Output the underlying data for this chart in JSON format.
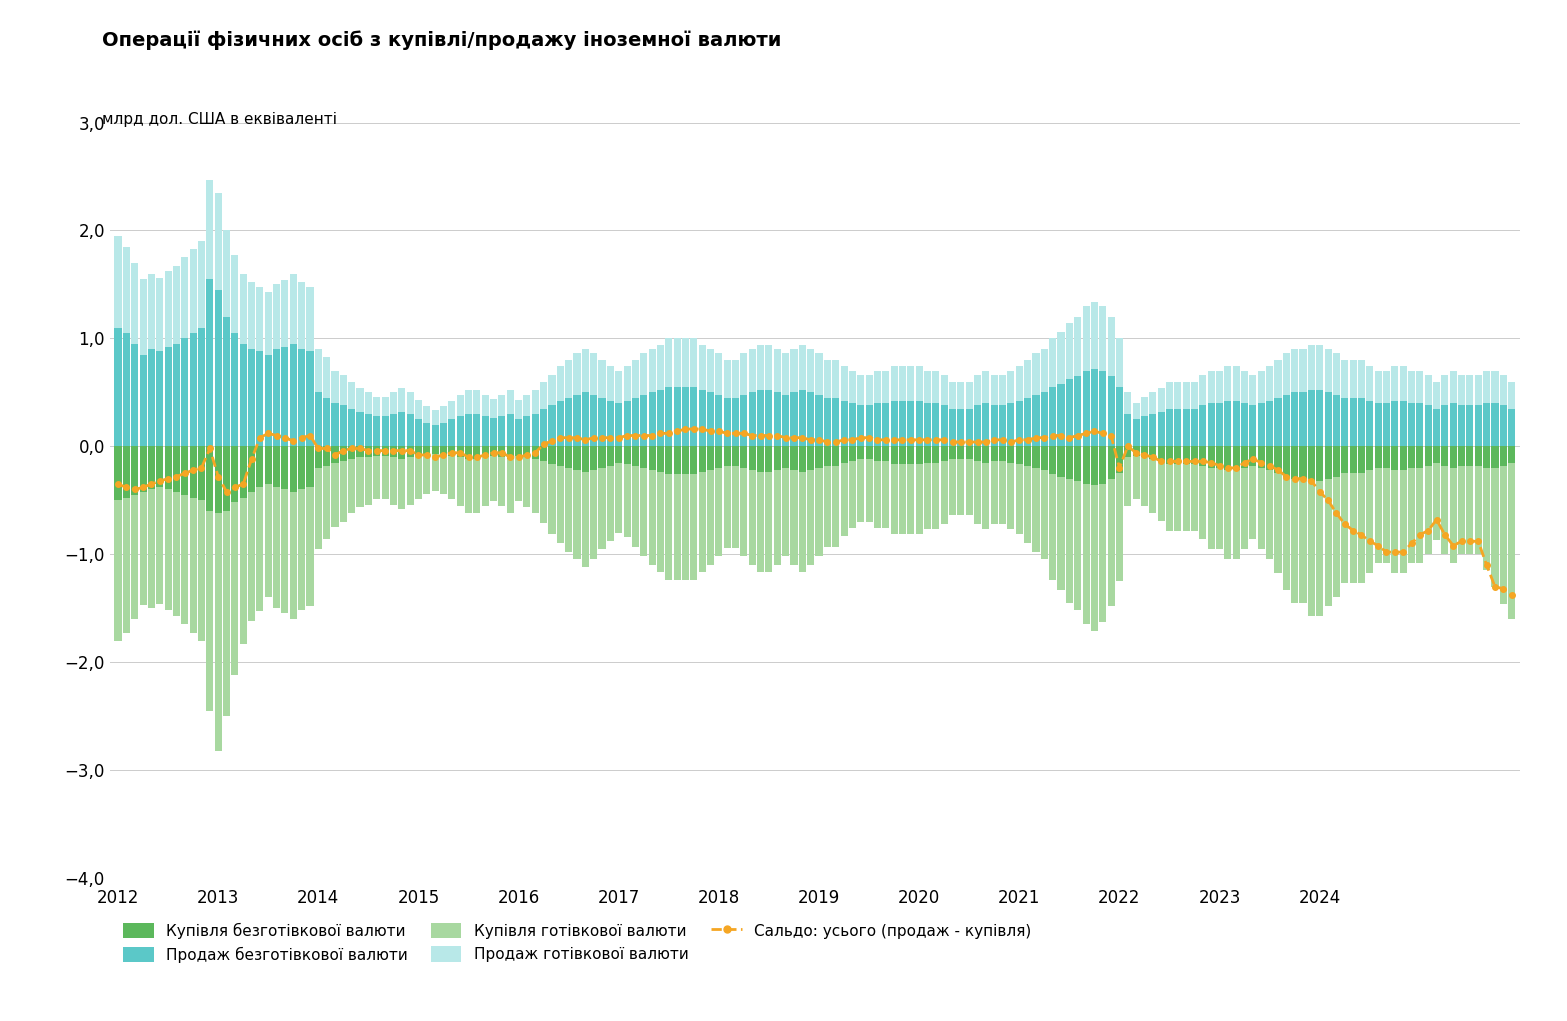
{
  "title": "Операції фізичних осіб з купівлі/продажу іноземної валюти",
  "ylabel": "млрд дол. США в еквіваленті",
  "ylim": [
    -4.0,
    3.0
  ],
  "yticks": [
    -4.0,
    -3.0,
    -2.0,
    -1.0,
    0.0,
    1.0,
    2.0,
    3.0
  ],
  "colors": {
    "buy_cashless": "#5cb85c",
    "sell_cashless": "#5bc8c8",
    "buy_cash": "#a8d8a0",
    "sell_cash": "#b8e8e8",
    "saldo_line": "#f5a623",
    "grid": "#cccccc",
    "background": "#ffffff"
  },
  "legend": [
    "Купівля безготівкової валюти",
    "Продаж безготівкової валюти",
    "Купівля готівкової валюти",
    "Продаж готівкової валюти",
    "Сальдо: усього (продаж - купівля)"
  ],
  "xtick_years": [
    "2012",
    "2013",
    "2014",
    "2015",
    "2016",
    "2017",
    "2018",
    "2019",
    "2020",
    "2021",
    "2022",
    "2023",
    "2024"
  ],
  "sell_cashless": [
    1.1,
    1.05,
    0.95,
    0.85,
    0.9,
    0.88,
    0.92,
    0.95,
    1.0,
    1.05,
    1.1,
    1.55,
    1.45,
    1.2,
    1.05,
    0.95,
    0.9,
    0.88,
    0.85,
    0.9,
    0.92,
    0.95,
    0.9,
    0.88,
    0.5,
    0.45,
    0.4,
    0.38,
    0.35,
    0.32,
    0.3,
    0.28,
    0.28,
    0.3,
    0.32,
    0.3,
    0.25,
    0.22,
    0.2,
    0.22,
    0.25,
    0.28,
    0.3,
    0.3,
    0.28,
    0.26,
    0.28,
    0.3,
    0.25,
    0.28,
    0.3,
    0.35,
    0.38,
    0.42,
    0.45,
    0.48,
    0.5,
    0.48,
    0.45,
    0.42,
    0.4,
    0.42,
    0.45,
    0.48,
    0.5,
    0.52,
    0.55,
    0.55,
    0.55,
    0.55,
    0.52,
    0.5,
    0.48,
    0.45,
    0.45,
    0.48,
    0.5,
    0.52,
    0.52,
    0.5,
    0.48,
    0.5,
    0.52,
    0.5,
    0.48,
    0.45,
    0.45,
    0.42,
    0.4,
    0.38,
    0.38,
    0.4,
    0.4,
    0.42,
    0.42,
    0.42,
    0.42,
    0.4,
    0.4,
    0.38,
    0.35,
    0.35,
    0.35,
    0.38,
    0.4,
    0.38,
    0.38,
    0.4,
    0.42,
    0.45,
    0.48,
    0.5,
    0.55,
    0.58,
    0.62,
    0.65,
    0.7,
    0.72,
    0.7,
    0.65,
    0.55,
    0.3,
    0.25,
    0.28,
    0.3,
    0.32,
    0.35,
    0.35,
    0.35,
    0.35,
    0.38,
    0.4,
    0.4,
    0.42,
    0.42,
    0.4,
    0.38,
    0.4,
    0.42,
    0.45,
    0.48,
    0.5,
    0.5,
    0.52,
    0.52,
    0.5,
    0.48,
    0.45,
    0.45,
    0.45,
    0.42,
    0.4,
    0.4,
    0.42,
    0.42,
    0.4,
    0.4,
    0.38,
    0.35,
    0.38,
    0.4,
    0.38,
    0.38,
    0.38,
    0.4,
    0.4,
    0.38,
    0.35
  ],
  "sell_cash": [
    0.85,
    0.8,
    0.75,
    0.7,
    0.7,
    0.68,
    0.7,
    0.72,
    0.75,
    0.78,
    0.8,
    0.92,
    0.9,
    0.8,
    0.72,
    0.65,
    0.62,
    0.6,
    0.58,
    0.6,
    0.62,
    0.65,
    0.62,
    0.6,
    0.4,
    0.38,
    0.3,
    0.28,
    0.25,
    0.22,
    0.2,
    0.18,
    0.18,
    0.2,
    0.22,
    0.2,
    0.18,
    0.15,
    0.14,
    0.15,
    0.17,
    0.2,
    0.22,
    0.22,
    0.2,
    0.18,
    0.2,
    0.22,
    0.18,
    0.2,
    0.22,
    0.25,
    0.28,
    0.32,
    0.35,
    0.38,
    0.4,
    0.38,
    0.35,
    0.32,
    0.3,
    0.32,
    0.35,
    0.38,
    0.4,
    0.42,
    0.45,
    0.45,
    0.45,
    0.45,
    0.42,
    0.4,
    0.38,
    0.35,
    0.35,
    0.38,
    0.4,
    0.42,
    0.42,
    0.4,
    0.38,
    0.4,
    0.42,
    0.4,
    0.38,
    0.35,
    0.35,
    0.32,
    0.3,
    0.28,
    0.28,
    0.3,
    0.3,
    0.32,
    0.32,
    0.32,
    0.32,
    0.3,
    0.3,
    0.28,
    0.25,
    0.25,
    0.25,
    0.28,
    0.3,
    0.28,
    0.28,
    0.3,
    0.32,
    0.35,
    0.38,
    0.4,
    0.45,
    0.48,
    0.52,
    0.55,
    0.6,
    0.62,
    0.6,
    0.55,
    0.45,
    0.2,
    0.15,
    0.18,
    0.2,
    0.22,
    0.25,
    0.25,
    0.25,
    0.25,
    0.28,
    0.3,
    0.3,
    0.32,
    0.32,
    0.3,
    0.28,
    0.3,
    0.32,
    0.35,
    0.38,
    0.4,
    0.4,
    0.42,
    0.42,
    0.4,
    0.38,
    0.35,
    0.35,
    0.35,
    0.32,
    0.3,
    0.3,
    0.32,
    0.32,
    0.3,
    0.3,
    0.28,
    0.25,
    0.28,
    0.3,
    0.28,
    0.28,
    0.28,
    0.3,
    0.3,
    0.28,
    0.25
  ],
  "buy_cashless": [
    -0.5,
    -0.48,
    -0.45,
    -0.42,
    -0.4,
    -0.38,
    -0.4,
    -0.42,
    -0.45,
    -0.48,
    -0.5,
    -0.6,
    -0.62,
    -0.6,
    -0.52,
    -0.48,
    -0.42,
    -0.38,
    -0.35,
    -0.38,
    -0.4,
    -0.42,
    -0.4,
    -0.38,
    -0.2,
    -0.18,
    -0.15,
    -0.14,
    -0.12,
    -0.1,
    -0.1,
    -0.09,
    -0.09,
    -0.1,
    -0.12,
    -0.1,
    -0.09,
    -0.08,
    -0.07,
    -0.08,
    -0.09,
    -0.1,
    -0.12,
    -0.12,
    -0.1,
    -0.09,
    -0.1,
    -0.12,
    -0.09,
    -0.1,
    -0.12,
    -0.14,
    -0.16,
    -0.18,
    -0.2,
    -0.22,
    -0.24,
    -0.22,
    -0.2,
    -0.18,
    -0.15,
    -0.16,
    -0.18,
    -0.2,
    -0.22,
    -0.24,
    -0.26,
    -0.26,
    -0.26,
    -0.26,
    -0.24,
    -0.22,
    -0.2,
    -0.18,
    -0.18,
    -0.2,
    -0.22,
    -0.24,
    -0.24,
    -0.22,
    -0.2,
    -0.22,
    -0.24,
    -0.22,
    -0.2,
    -0.18,
    -0.18,
    -0.15,
    -0.14,
    -0.12,
    -0.12,
    -0.14,
    -0.14,
    -0.16,
    -0.16,
    -0.16,
    -0.16,
    -0.15,
    -0.15,
    -0.14,
    -0.12,
    -0.12,
    -0.12,
    -0.14,
    -0.15,
    -0.14,
    -0.14,
    -0.15,
    -0.16,
    -0.18,
    -0.2,
    -0.22,
    -0.26,
    -0.28,
    -0.3,
    -0.32,
    -0.35,
    -0.36,
    -0.35,
    -0.3,
    -0.25,
    -0.1,
    -0.09,
    -0.1,
    -0.12,
    -0.14,
    -0.16,
    -0.16,
    -0.16,
    -0.16,
    -0.18,
    -0.2,
    -0.2,
    -0.22,
    -0.22,
    -0.2,
    -0.18,
    -0.2,
    -0.22,
    -0.25,
    -0.28,
    -0.3,
    -0.3,
    -0.32,
    -0.32,
    -0.3,
    -0.28,
    -0.25,
    -0.25,
    -0.25,
    -0.22,
    -0.2,
    -0.2,
    -0.22,
    -0.22,
    -0.2,
    -0.2,
    -0.18,
    -0.15,
    -0.18,
    -0.2,
    -0.18,
    -0.18,
    -0.18,
    -0.2,
    -0.2,
    -0.18,
    -0.15
  ],
  "buy_cash": [
    -1.3,
    -1.25,
    -1.15,
    -1.05,
    -1.1,
    -1.08,
    -1.12,
    -1.15,
    -1.2,
    -1.25,
    -1.3,
    -1.85,
    -2.2,
    -1.9,
    -1.6,
    -1.35,
    -1.2,
    -1.15,
    -1.05,
    -1.12,
    -1.14,
    -1.18,
    -1.12,
    -1.1,
    -0.75,
    -0.68,
    -0.6,
    -0.56,
    -0.5,
    -0.46,
    -0.44,
    -0.4,
    -0.4,
    -0.44,
    -0.46,
    -0.44,
    -0.4,
    -0.36,
    -0.34,
    -0.36,
    -0.4,
    -0.45,
    -0.5,
    -0.5,
    -0.45,
    -0.42,
    -0.45,
    -0.5,
    -0.42,
    -0.46,
    -0.5,
    -0.57,
    -0.65,
    -0.72,
    -0.78,
    -0.82,
    -0.88,
    -0.82,
    -0.75,
    -0.7,
    -0.65,
    -0.68,
    -0.75,
    -0.82,
    -0.88,
    -0.92,
    -0.98,
    -0.98,
    -0.98,
    -0.98,
    -0.92,
    -0.88,
    -0.82,
    -0.76,
    -0.76,
    -0.82,
    -0.88,
    -0.92,
    -0.92,
    -0.88,
    -0.82,
    -0.88,
    -0.92,
    -0.88,
    -0.82,
    -0.75,
    -0.75,
    -0.68,
    -0.62,
    -0.58,
    -0.58,
    -0.62,
    -0.62,
    -0.65,
    -0.65,
    -0.65,
    -0.65,
    -0.62,
    -0.62,
    -0.58,
    -0.52,
    -0.52,
    -0.52,
    -0.58,
    -0.62,
    -0.58,
    -0.58,
    -0.62,
    -0.65,
    -0.72,
    -0.78,
    -0.82,
    -0.98,
    -1.05,
    -1.15,
    -1.2,
    -1.3,
    -1.35,
    -1.28,
    -1.18,
    -1.0,
    -0.45,
    -0.4,
    -0.45,
    -0.5,
    -0.55,
    -0.62,
    -0.62,
    -0.62,
    -0.62,
    -0.68,
    -0.75,
    -0.75,
    -0.82,
    -0.82,
    -0.75,
    -0.68,
    -0.75,
    -0.82,
    -0.92,
    -1.05,
    -1.15,
    -1.15,
    -1.25,
    -1.25,
    -1.18,
    -1.12,
    -1.02,
    -1.02,
    -1.02,
    -0.95,
    -0.88,
    -0.88,
    -0.95,
    -0.95,
    -0.88,
    -0.88,
    -0.82,
    -0.72,
    -0.82,
    -0.88,
    -0.82,
    -0.82,
    -0.82,
    -0.95,
    -1.1,
    -1.28,
    -1.45
  ],
  "saldo": [
    -0.35,
    -0.38,
    -0.4,
    -0.38,
    -0.35,
    -0.32,
    -0.3,
    -0.28,
    -0.25,
    -0.22,
    -0.2,
    -0.02,
    -0.28,
    -0.42,
    -0.38,
    -0.35,
    -0.12,
    0.08,
    0.12,
    0.1,
    0.08,
    0.05,
    0.08,
    0.1,
    -0.02,
    -0.02,
    -0.08,
    -0.04,
    -0.02,
    -0.02,
    -0.04,
    -0.04,
    -0.04,
    -0.04,
    -0.04,
    -0.04,
    -0.08,
    -0.08,
    -0.1,
    -0.08,
    -0.06,
    -0.06,
    -0.1,
    -0.1,
    -0.08,
    -0.06,
    -0.06,
    -0.1,
    -0.1,
    -0.08,
    -0.06,
    0.02,
    0.05,
    0.08,
    0.08,
    0.08,
    0.06,
    0.08,
    0.08,
    0.08,
    0.08,
    0.1,
    0.1,
    0.1,
    0.1,
    0.12,
    0.12,
    0.14,
    0.16,
    0.16,
    0.16,
    0.14,
    0.14,
    0.12,
    0.12,
    0.12,
    0.1,
    0.1,
    0.1,
    0.1,
    0.08,
    0.08,
    0.08,
    0.06,
    0.06,
    0.04,
    0.04,
    0.06,
    0.06,
    0.08,
    0.08,
    0.06,
    0.06,
    0.06,
    0.06,
    0.06,
    0.06,
    0.06,
    0.06,
    0.06,
    0.04,
    0.04,
    0.04,
    0.04,
    0.04,
    0.06,
    0.06,
    0.04,
    0.06,
    0.06,
    0.08,
    0.08,
    0.1,
    0.1,
    0.08,
    0.1,
    0.12,
    0.14,
    0.12,
    0.1,
    -0.2,
    0.0,
    -0.06,
    -0.08,
    -0.1,
    -0.14,
    -0.14,
    -0.14,
    -0.14,
    -0.14,
    -0.14,
    -0.15,
    -0.18,
    -0.2,
    -0.2,
    -0.15,
    -0.12,
    -0.15,
    -0.18,
    -0.22,
    -0.28,
    -0.3,
    -0.3,
    -0.32,
    -0.42,
    -0.5,
    -0.62,
    -0.72,
    -0.78,
    -0.82,
    -0.88,
    -0.92,
    -0.98,
    -0.98,
    -0.98,
    -0.9,
    -0.82,
    -0.78,
    -0.68,
    -0.82,
    -0.92,
    -0.88,
    -0.88,
    -0.88,
    -1.1,
    -1.3,
    -1.32,
    -1.38
  ]
}
